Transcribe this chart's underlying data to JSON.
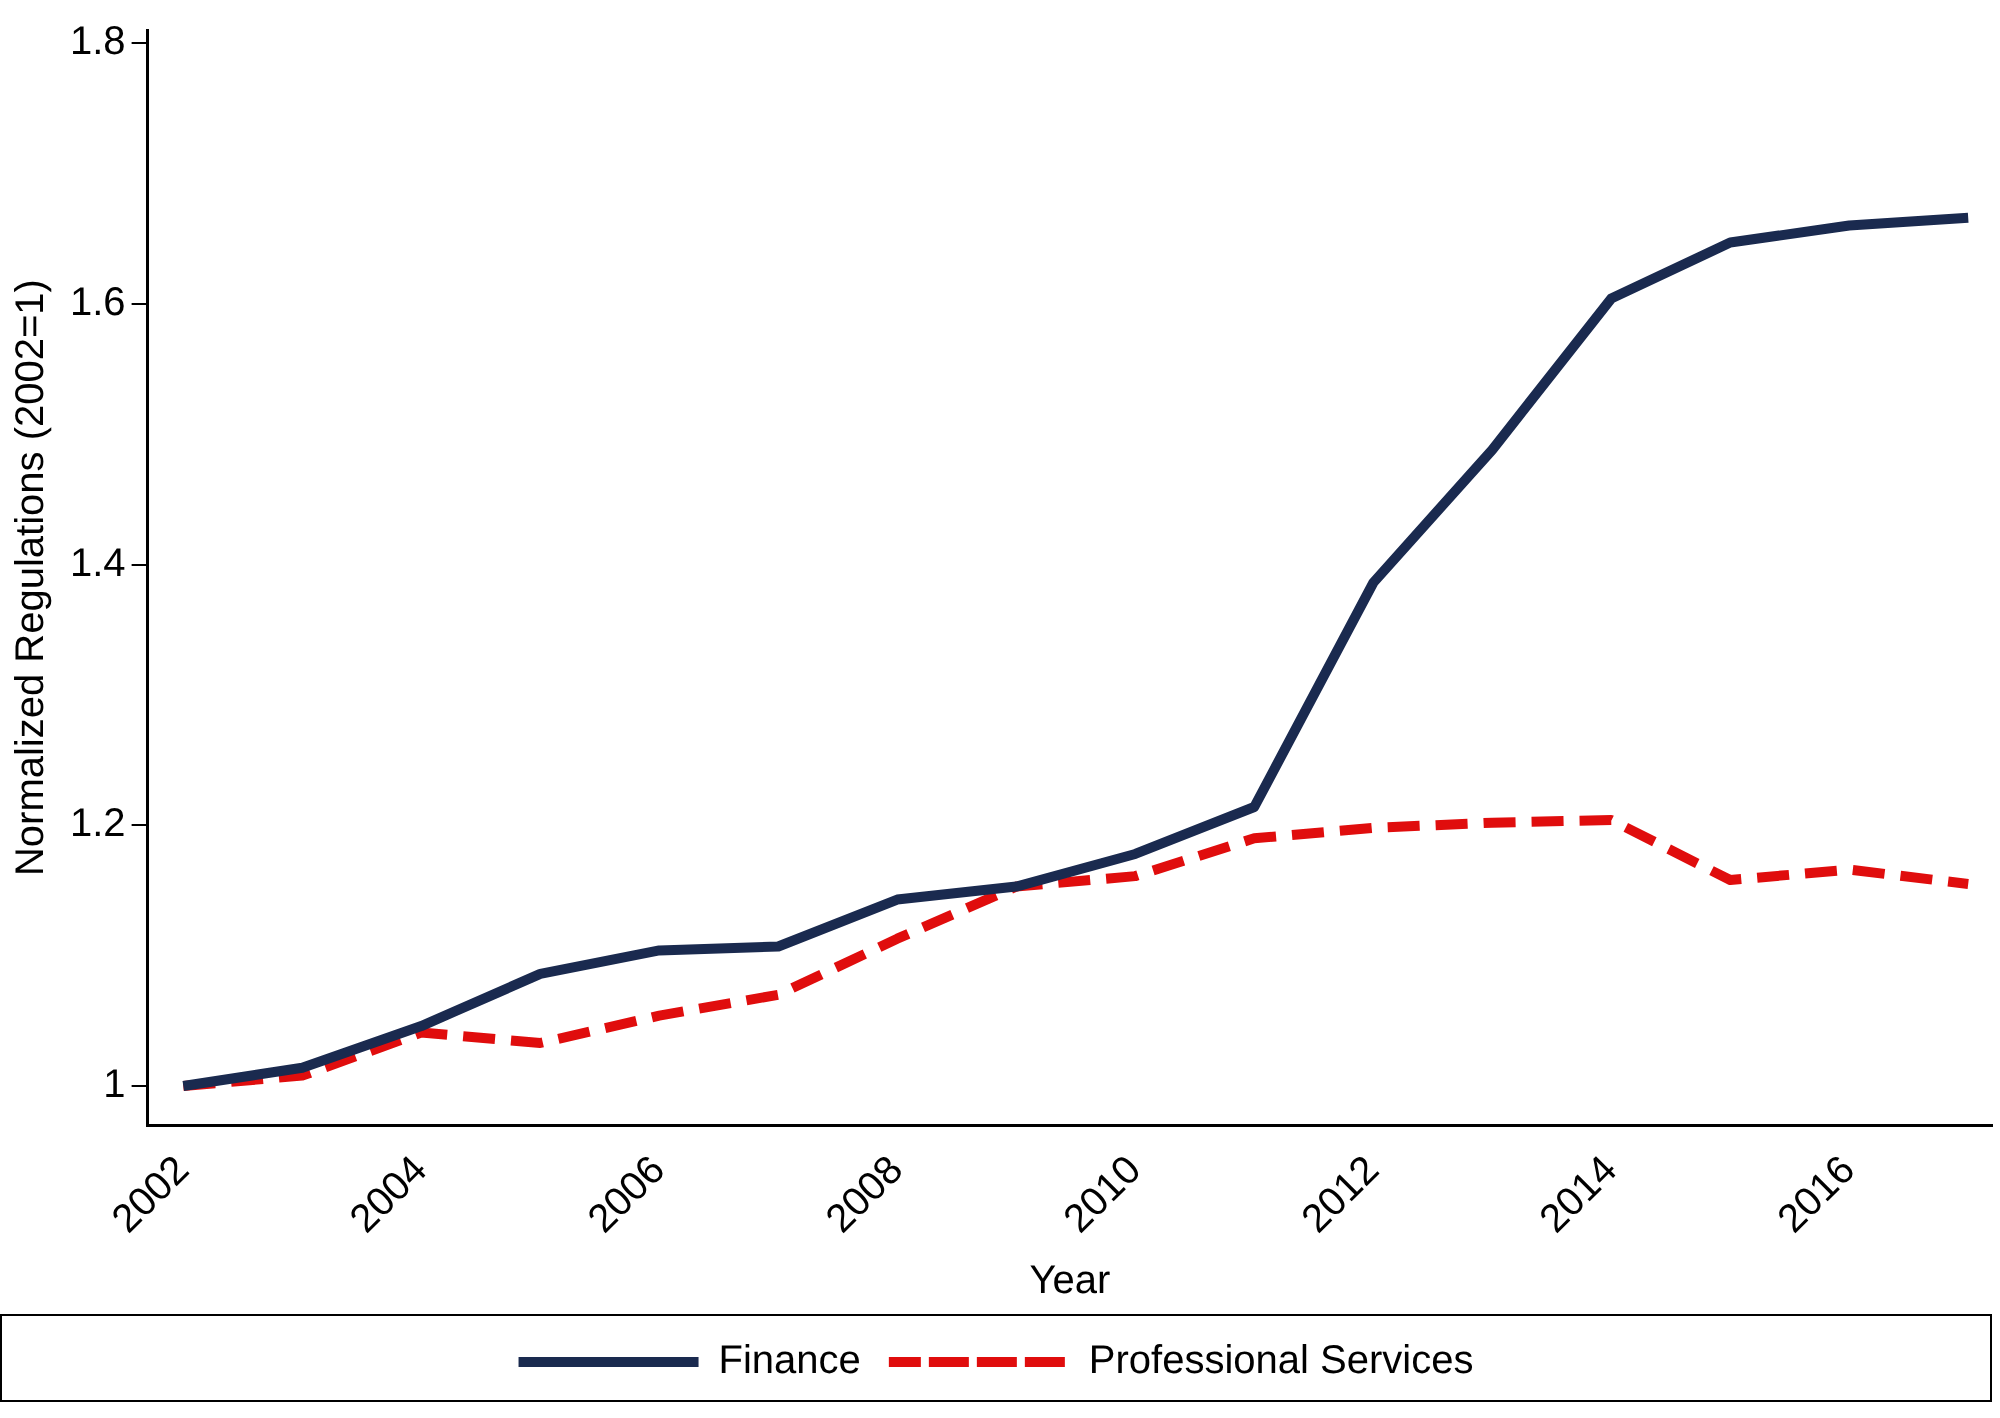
{
  "chart_data": {
    "type": "line",
    "xlabel": "Year",
    "ylabel": "Normalized Regulations (2002=1)",
    "x": [
      2002,
      2003,
      2004,
      2005,
      2006,
      2007,
      2008,
      2009,
      2010,
      2011,
      2012,
      2013,
      2014,
      2015,
      2016,
      2017
    ],
    "series": [
      {
        "name": "Finance",
        "color": "#1a2a4f",
        "line_style": "solid",
        "values": [
          1.0,
          1.014,
          1.046,
          1.086,
          1.104,
          1.107,
          1.143,
          1.153,
          1.178,
          1.214,
          1.386,
          1.488,
          1.604,
          1.647,
          1.66,
          1.666
        ]
      },
      {
        "name": "Professional Services",
        "color": "#e00d0d",
        "line_style": "dashed",
        "values": [
          1.0,
          1.008,
          1.041,
          1.033,
          1.054,
          1.07,
          1.113,
          1.153,
          1.161,
          1.19,
          1.198,
          1.202,
          1.204,
          1.158,
          1.166,
          1.155
        ]
      }
    ],
    "xlim": [
      2001.7,
      2017.2
    ],
    "xticks": [
      2002,
      2004,
      2006,
      2008,
      2010,
      2012,
      2014,
      2016
    ],
    "ylim": [
      0.97,
      1.81
    ],
    "yticks": [
      1,
      1.2,
      1.4,
      1.6,
      1.8
    ],
    "grid": false,
    "legend": "bottom",
    "marker": "none"
  }
}
